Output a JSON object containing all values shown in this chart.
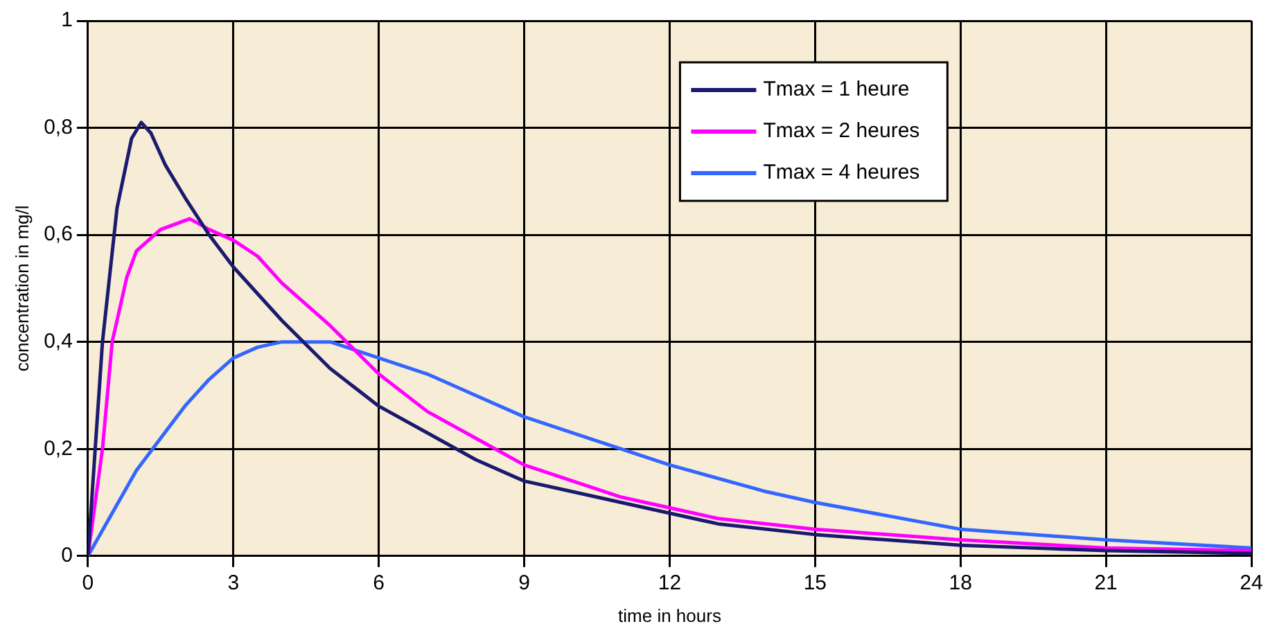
{
  "chart_data": {
    "type": "line",
    "xlabel": "time in hours",
    "ylabel": "concentration in mg/l",
    "xlim": [
      0,
      24
    ],
    "xticks": [
      0,
      3,
      6,
      9,
      12,
      15,
      18,
      21,
      24
    ],
    "ylim": [
      0,
      1
    ],
    "yticks": [
      0,
      {
        "value": 0.2,
        "label": "0,2"
      },
      {
        "value": 0.4,
        "label": "0,4"
      },
      {
        "value": 0.6,
        "label": "0,6"
      },
      {
        "value": 0.8,
        "label": "0,8"
      },
      1
    ],
    "grid": true,
    "legend": "top right",
    "marker": "none",
    "line_style": "solid",
    "series": [
      {
        "name": "Tmax = 1 heure",
        "color": "#1a1a6e",
        "x": [
          0,
          0.3,
          0.6,
          0.9,
          1.1,
          1.3,
          1.6,
          2,
          2.5,
          3,
          4,
          5,
          6,
          7,
          8,
          9,
          10,
          11,
          12,
          13,
          15,
          18,
          21,
          24
        ],
        "values": [
          0,
          0.4,
          0.65,
          0.78,
          0.81,
          0.79,
          0.73,
          0.67,
          0.6,
          0.54,
          0.44,
          0.35,
          0.28,
          0.23,
          0.18,
          0.14,
          0.12,
          0.1,
          0.08,
          0.06,
          0.04,
          0.02,
          0.01,
          0.005
        ]
      },
      {
        "name": "Tmax = 2 heures",
        "color": "#ff00ff",
        "x": [
          0,
          0.3,
          0.5,
          0.8,
          1,
          1.5,
          2.1,
          2.5,
          3,
          3.5,
          4,
          5,
          6,
          7,
          8,
          9,
          10,
          11,
          12,
          13,
          15,
          18,
          21,
          24
        ],
        "values": [
          0,
          0.2,
          0.4,
          0.52,
          0.57,
          0.61,
          0.63,
          0.61,
          0.59,
          0.56,
          0.51,
          0.43,
          0.34,
          0.27,
          0.22,
          0.17,
          0.14,
          0.11,
          0.09,
          0.07,
          0.05,
          0.03,
          0.015,
          0.01
        ]
      },
      {
        "name": "Tmax = 4 heures",
        "color": "#3366ff",
        "x": [
          0,
          0.5,
          1,
          1.5,
          2,
          2.5,
          3,
          3.5,
          4,
          5,
          6,
          7,
          8,
          9,
          10,
          12,
          14,
          15,
          18,
          21,
          24
        ],
        "values": [
          0,
          0.08,
          0.16,
          0.22,
          0.28,
          0.33,
          0.37,
          0.39,
          0.4,
          0.4,
          0.37,
          0.34,
          0.3,
          0.26,
          0.23,
          0.17,
          0.12,
          0.1,
          0.05,
          0.03,
          0.015
        ]
      }
    ]
  }
}
